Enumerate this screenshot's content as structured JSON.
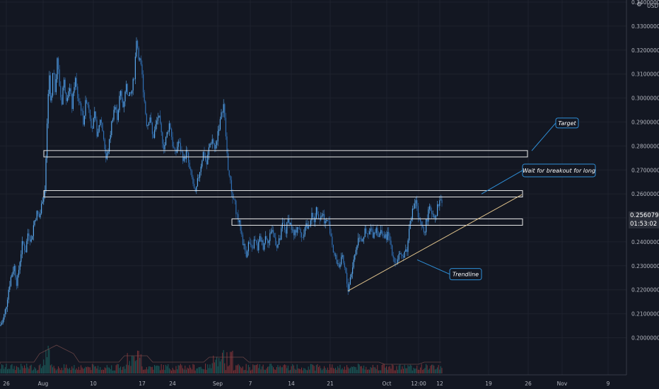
{
  "chart_data": {
    "type": "candlestick",
    "title": "",
    "currency": "USD",
    "x_ticks": [
      "26",
      "Aug",
      "10",
      "17",
      "24",
      "Sep",
      "7",
      "14",
      "21",
      "Oct",
      "12:00",
      "12",
      "19",
      "26",
      "Nov",
      "9"
    ],
    "y_ticks": [
      "0.20000000",
      "0.21000000",
      "0.22000000",
      "0.23000000",
      "0.24000000",
      "0.25000000",
      "0.26000000",
      "0.27000000",
      "0.28000000",
      "0.29000000",
      "0.30000000",
      "0.31000000",
      "0.32000000",
      "0.33000000",
      "0.34000000"
    ],
    "ylim": [
      0.1845,
      0.3409
    ],
    "current_price": "0.25607915",
    "countdown": "01:53:02",
    "price_path": [
      [
        0,
        0.205
      ],
      [
        4,
        0.207
      ],
      [
        8,
        0.212
      ],
      [
        12,
        0.22
      ],
      [
        16,
        0.226
      ],
      [
        20,
        0.23
      ],
      [
        24,
        0.222
      ],
      [
        28,
        0.232
      ],
      [
        32,
        0.24
      ],
      [
        36,
        0.236
      ],
      [
        40,
        0.245
      ],
      [
        44,
        0.24
      ],
      [
        48,
        0.248
      ],
      [
        52,
        0.252
      ],
      [
        56,
        0.25
      ],
      [
        60,
        0.258
      ],
      [
        64,
        0.262
      ],
      [
        66,
        0.285
      ],
      [
        68,
        0.3
      ],
      [
        70,
        0.31
      ],
      [
        72,
        0.294
      ],
      [
        75,
        0.312
      ],
      [
        78,
        0.303
      ],
      [
        81,
        0.317
      ],
      [
        84,
        0.306
      ],
      [
        87,
        0.297
      ],
      [
        90,
        0.308
      ],
      [
        94,
        0.3
      ],
      [
        98,
        0.305
      ],
      [
        102,
        0.296
      ],
      [
        106,
        0.309
      ],
      [
        110,
        0.3
      ],
      [
        114,
        0.297
      ],
      [
        118,
        0.29
      ],
      [
        122,
        0.3
      ],
      [
        126,
        0.296
      ],
      [
        130,
        0.287
      ],
      [
        134,
        0.293
      ],
      [
        138,
        0.283
      ],
      [
        142,
        0.292
      ],
      [
        146,
        0.285
      ],
      [
        150,
        0.274
      ],
      [
        154,
        0.28
      ],
      [
        158,
        0.29
      ],
      [
        162,
        0.297
      ],
      [
        166,
        0.292
      ],
      [
        170,
        0.303
      ],
      [
        174,
        0.296
      ],
      [
        178,
        0.306
      ],
      [
        182,
        0.3
      ],
      [
        186,
        0.302
      ],
      [
        190,
        0.31
      ],
      [
        193,
        0.325
      ],
      [
        196,
        0.318
      ],
      [
        199,
        0.314
      ],
      [
        202,
        0.306
      ],
      [
        205,
        0.296
      ],
      [
        208,
        0.288
      ],
      [
        212,
        0.293
      ],
      [
        216,
        0.283
      ],
      [
        220,
        0.288
      ],
      [
        224,
        0.293
      ],
      [
        228,
        0.285
      ],
      [
        232,
        0.279
      ],
      [
        236,
        0.285
      ],
      [
        240,
        0.29
      ],
      [
        244,
        0.281
      ],
      [
        248,
        0.276
      ],
      [
        252,
        0.282
      ],
      [
        256,
        0.278
      ],
      [
        260,
        0.274
      ],
      [
        264,
        0.278
      ],
      [
        268,
        0.27
      ],
      [
        272,
        0.266
      ],
      [
        276,
        0.259
      ],
      [
        280,
        0.266
      ],
      [
        284,
        0.272
      ],
      [
        288,
        0.278
      ],
      [
        292,
        0.272
      ],
      [
        296,
        0.28
      ],
      [
        300,
        0.283
      ],
      [
        304,
        0.278
      ],
      [
        308,
        0.286
      ],
      [
        312,
        0.291
      ],
      [
        316,
        0.298
      ],
      [
        319,
        0.286
      ],
      [
        322,
        0.272
      ],
      [
        325,
        0.266
      ],
      [
        328,
        0.26
      ],
      [
        332,
        0.256
      ],
      [
        336,
        0.25
      ],
      [
        340,
        0.246
      ],
      [
        344,
        0.239
      ],
      [
        348,
        0.235
      ],
      [
        352,
        0.24
      ],
      [
        356,
        0.236
      ],
      [
        360,
        0.241
      ],
      [
        364,
        0.237
      ],
      [
        368,
        0.242
      ],
      [
        372,
        0.238
      ],
      [
        376,
        0.243
      ],
      [
        380,
        0.24
      ],
      [
        384,
        0.246
      ],
      [
        388,
        0.242
      ],
      [
        392,
        0.238
      ],
      [
        396,
        0.241
      ],
      [
        400,
        0.248
      ],
      [
        404,
        0.244
      ],
      [
        408,
        0.25
      ],
      [
        412,
        0.246
      ],
      [
        416,
        0.242
      ],
      [
        420,
        0.247
      ],
      [
        424,
        0.244
      ],
      [
        428,
        0.242
      ],
      [
        432,
        0.248
      ],
      [
        436,
        0.245
      ],
      [
        440,
        0.251
      ],
      [
        444,
        0.249
      ],
      [
        448,
        0.254
      ],
      [
        452,
        0.25
      ],
      [
        456,
        0.252
      ],
      [
        460,
        0.248
      ],
      [
        464,
        0.249
      ],
      [
        468,
        0.243
      ],
      [
        472,
        0.235
      ],
      [
        476,
        0.232
      ],
      [
        480,
        0.23
      ],
      [
        484,
        0.233
      ],
      [
        488,
        0.228
      ],
      [
        492,
        0.22
      ],
      [
        496,
        0.226
      ],
      [
        500,
        0.232
      ],
      [
        504,
        0.238
      ],
      [
        508,
        0.243
      ],
      [
        512,
        0.241
      ],
      [
        516,
        0.244
      ],
      [
        520,
        0.242
      ],
      [
        524,
        0.245
      ],
      [
        528,
        0.243
      ],
      [
        532,
        0.246
      ],
      [
        536,
        0.242
      ],
      [
        540,
        0.245
      ],
      [
        544,
        0.241
      ],
      [
        548,
        0.243
      ],
      [
        552,
        0.24
      ],
      [
        556,
        0.234
      ],
      [
        560,
        0.231
      ],
      [
        564,
        0.234
      ],
      [
        568,
        0.233
      ],
      [
        572,
        0.236
      ],
      [
        576,
        0.237
      ],
      [
        580,
        0.25
      ],
      [
        584,
        0.253
      ],
      [
        588,
        0.258
      ],
      [
        592,
        0.249
      ],
      [
        596,
        0.246
      ],
      [
        600,
        0.244
      ],
      [
        604,
        0.25
      ],
      [
        608,
        0.254
      ],
      [
        612,
        0.252
      ],
      [
        616,
        0.251
      ],
      [
        620,
        0.256
      ],
      [
        624,
        0.258
      ],
      [
        626,
        0.256
      ]
    ],
    "zones": [
      {
        "top": 0.2772,
        "bottom": 0.2763,
        "x_start": 62,
        "x_end": 746
      },
      {
        "top": 0.2605,
        "bottom": 0.2596,
        "x_start": 62,
        "x_end": 739
      },
      {
        "top": 0.2487,
        "bottom": 0.2478,
        "x_start": 328,
        "x_end": 739
      }
    ],
    "trendlines": [
      {
        "from": [
          492,
          0.2195
        ],
        "to": [
          738,
          0.2597
        ],
        "color": "#e0c38c"
      }
    ],
    "annotations": [
      {
        "text": "Target",
        "box_x": 786,
        "box_y_price": 0.2896,
        "box_w": 32,
        "box_h": 14,
        "arrow_to": [
          752,
          0.278
        ]
      },
      {
        "text": "Wait for breakout for long",
        "box_x": 739,
        "box_y_price": 0.2698,
        "box_w": 103,
        "box_h": 18,
        "arrow_to": [
          681,
          0.26
        ]
      },
      {
        "text": "Trendline",
        "box_x": 636,
        "box_y_price": 0.2265,
        "box_w": 45,
        "box_h": 16,
        "arrow_to": [
          590,
          0.2325
        ]
      }
    ]
  }
}
